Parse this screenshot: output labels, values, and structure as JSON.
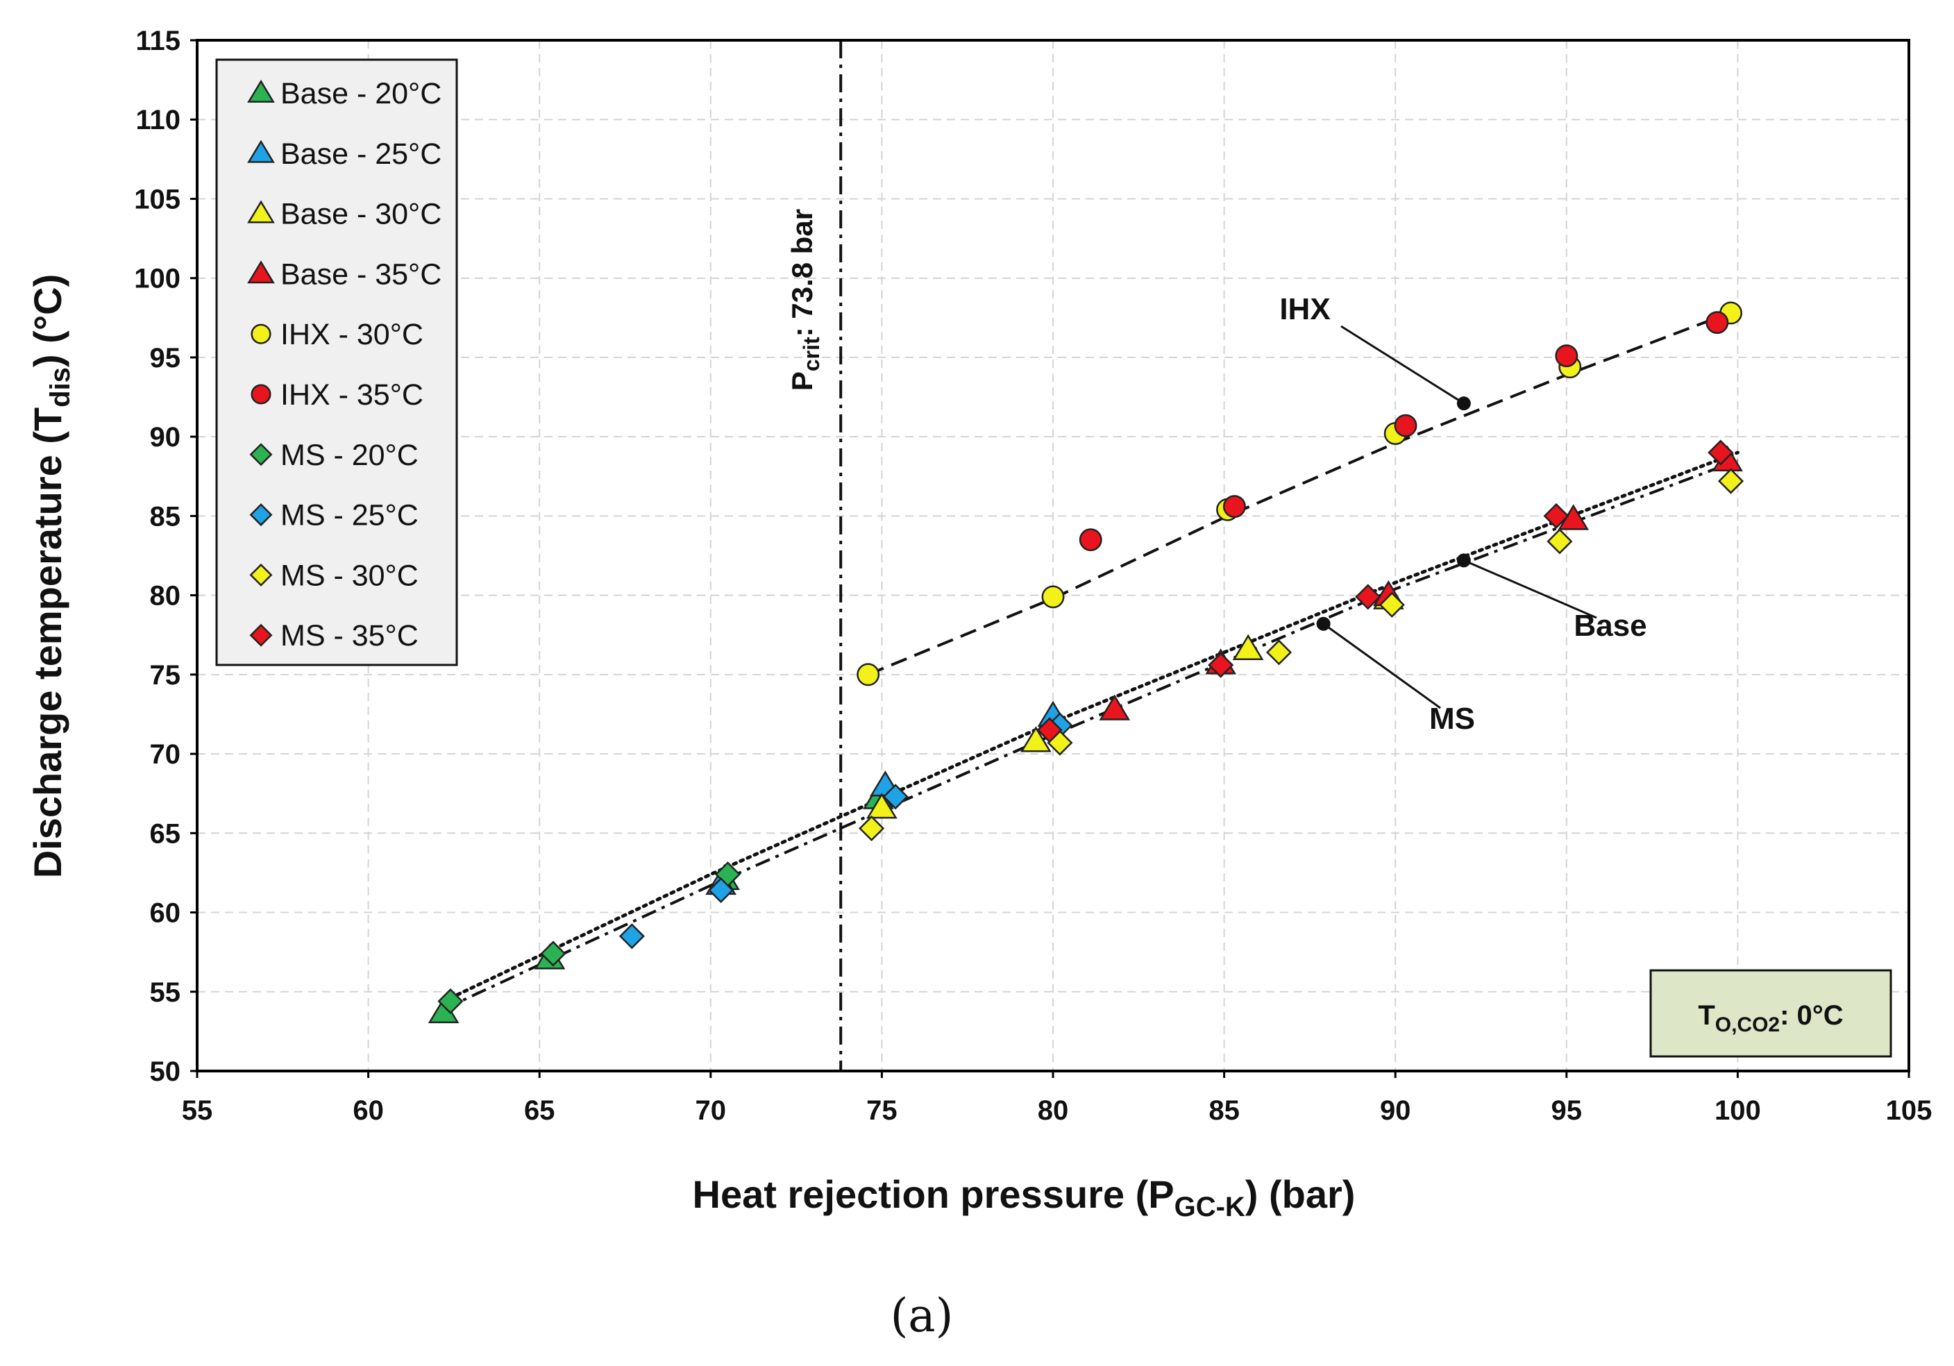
{
  "chart_data": {
    "type": "scatter",
    "xlabel": {
      "main": "Heat rejection pressure (P",
      "sub": "GC-K",
      "end": ") (bar)"
    },
    "ylabel": {
      "main": "Discharge temperature (T",
      "sub": "dis",
      "end": ") (°C)"
    },
    "xlim": [
      55,
      105
    ],
    "ylim": [
      50,
      115
    ],
    "xticks": [
      55,
      60,
      65,
      70,
      75,
      80,
      85,
      90,
      95,
      100,
      105
    ],
    "yticks": [
      50,
      55,
      60,
      65,
      70,
      75,
      80,
      85,
      90,
      95,
      100,
      105,
      110,
      115
    ],
    "grid": true,
    "legend_position": "top-left",
    "series": [
      {
        "name": "Base - 20°C",
        "marker": "triangle",
        "color": "#2bb352",
        "points": [
          [
            62.2,
            53.7
          ],
          [
            65.3,
            57.1
          ],
          [
            70.4,
            62.1
          ],
          [
            74.9,
            67.2
          ]
        ]
      },
      {
        "name": "Base - 25°C",
        "marker": "triangle",
        "color": "#1fa3e6",
        "points": [
          [
            70.3,
            61.8
          ],
          [
            75.1,
            68.0
          ],
          [
            80.0,
            72.4
          ]
        ]
      },
      {
        "name": "Base - 30°C",
        "marker": "triangle",
        "color": "#f2f21a",
        "points": [
          [
            75.0,
            66.6
          ],
          [
            79.5,
            70.8
          ],
          [
            85.7,
            76.6
          ],
          [
            89.8,
            79.8
          ]
        ]
      },
      {
        "name": "Base - 35°C",
        "marker": "triangle",
        "color": "#e8141e",
        "points": [
          [
            81.8,
            72.8
          ],
          [
            84.9,
            75.7
          ],
          [
            89.8,
            80.0
          ],
          [
            95.2,
            84.8
          ],
          [
            99.7,
            88.5
          ]
        ]
      },
      {
        "name": "IHX - 30°C",
        "marker": "circle",
        "color": "#f2f21a",
        "points": [
          [
            74.6,
            75.0
          ],
          [
            80.0,
            79.9
          ],
          [
            85.1,
            85.4
          ],
          [
            90.0,
            90.2
          ],
          [
            95.1,
            94.4
          ],
          [
            99.8,
            97.8
          ]
        ]
      },
      {
        "name": "IHX - 35°C",
        "marker": "circle",
        "color": "#e8141e",
        "points": [
          [
            81.1,
            83.5
          ],
          [
            85.3,
            85.6
          ],
          [
            90.3,
            90.7
          ],
          [
            95.0,
            95.1
          ],
          [
            99.4,
            97.2
          ]
        ]
      },
      {
        "name": "MS - 20°C",
        "marker": "diamond",
        "color": "#2bb352",
        "points": [
          [
            62.4,
            54.4
          ],
          [
            65.4,
            57.4
          ],
          [
            70.5,
            62.4
          ]
        ]
      },
      {
        "name": "MS - 25°C",
        "marker": "diamond",
        "color": "#1fa3e6",
        "points": [
          [
            67.7,
            58.5
          ],
          [
            70.3,
            61.4
          ],
          [
            75.4,
            67.3
          ],
          [
            80.2,
            71.8
          ]
        ]
      },
      {
        "name": "MS - 30°C",
        "marker": "diamond",
        "color": "#f2f21a",
        "points": [
          [
            74.7,
            65.3
          ],
          [
            80.2,
            70.7
          ],
          [
            86.6,
            76.4
          ],
          [
            89.9,
            79.4
          ],
          [
            94.8,
            83.4
          ],
          [
            99.8,
            87.2
          ]
        ]
      },
      {
        "name": "MS - 35°C",
        "marker": "diamond",
        "color": "#e8141e",
        "points": [
          [
            79.9,
            71.5
          ],
          [
            84.9,
            75.6
          ],
          [
            89.2,
            79.9
          ],
          [
            94.7,
            85.0
          ],
          [
            99.5,
            89.0
          ]
        ]
      }
    ],
    "trendlines": [
      {
        "name": "IHX",
        "style": "dashed",
        "points": [
          [
            74.6,
            75.0
          ],
          [
            80.0,
            79.8
          ],
          [
            85.0,
            84.9
          ],
          [
            90.0,
            89.6
          ],
          [
            95.0,
            93.9
          ],
          [
            100.0,
            98.0
          ]
        ]
      },
      {
        "name": "Base",
        "style": "dashdot",
        "points": [
          [
            62.2,
            53.9
          ],
          [
            70.0,
            61.7
          ],
          [
            80.0,
            71.2
          ],
          [
            90.0,
            80.4
          ],
          [
            100.0,
            88.5
          ]
        ]
      },
      {
        "name": "MS",
        "style": "dotted",
        "points": [
          [
            62.2,
            54.4
          ],
          [
            70.0,
            62.4
          ],
          [
            80.0,
            72.0
          ],
          [
            90.0,
            80.8
          ],
          [
            100.0,
            89.0
          ]
        ]
      }
    ],
    "reference_line": {
      "x": 73.8,
      "label": {
        "main": "P",
        "sub": "crit",
        "end": ": 73.8 bar"
      }
    },
    "annotations": [
      {
        "text": "IHX",
        "target": [
          92.0,
          92.1
        ]
      },
      {
        "text": "Base",
        "target": [
          92.0,
          82.2
        ]
      },
      {
        "text": "MS",
        "target": [
          87.9,
          78.2
        ]
      }
    ],
    "condition_box": {
      "main": "T",
      "sub": "O,CO2",
      "end": ": 0°C"
    },
    "caption": "(a)"
  }
}
